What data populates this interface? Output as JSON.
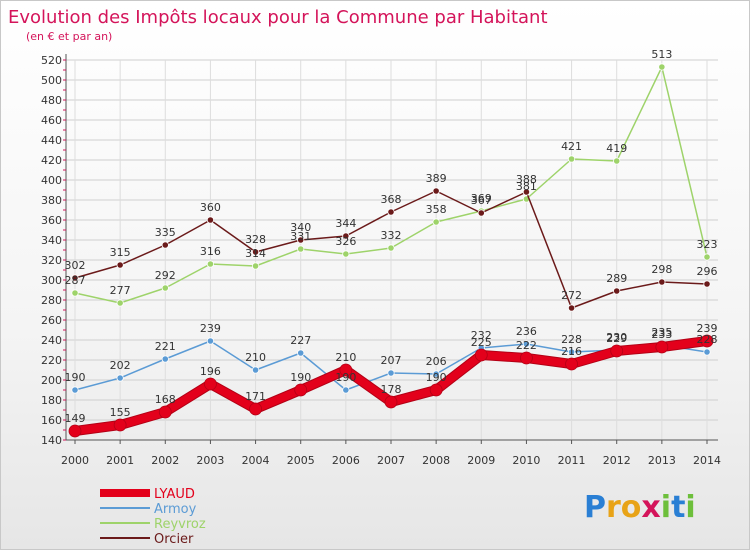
{
  "title": "Evolution des Impôts locaux pour la Commune par Habitant",
  "subtitle": "(en € et par an)",
  "logo": {
    "letters": [
      {
        "ch": "P",
        "color": "#2a7fd4"
      },
      {
        "ch": "r",
        "color": "#e8a317"
      },
      {
        "ch": "o",
        "color": "#e8a317"
      },
      {
        "ch": "x",
        "color": "#d4145a"
      },
      {
        "ch": "i",
        "color": "#6dbf3b"
      },
      {
        "ch": "t",
        "color": "#2a7fd4"
      },
      {
        "ch": "i",
        "color": "#6dbf3b"
      }
    ]
  },
  "chart_data": {
    "type": "line",
    "title": "Evolution des Impôts locaux pour la Commune par Habitant",
    "subtitle": "(en € et par an)",
    "x": [
      "2000",
      "2001",
      "2002",
      "2003",
      "2004",
      "2005",
      "2006",
      "2007",
      "2008",
      "2009",
      "2010",
      "2011",
      "2012",
      "2013",
      "2014"
    ],
    "ylim": [
      140,
      520
    ],
    "yticks": [
      140,
      160,
      180,
      200,
      220,
      240,
      260,
      280,
      300,
      320,
      340,
      360,
      380,
      400,
      420,
      440,
      460,
      480,
      500,
      520
    ],
    "grid": true,
    "legend_position": "bottom-left",
    "series": [
      {
        "name": "LYAUD",
        "color": "#e3001b",
        "width": 8,
        "values": [
          149,
          155,
          168,
          196,
          171,
          190,
          210,
          178,
          190,
          225,
          222,
          216,
          229,
          233,
          239
        ]
      },
      {
        "name": "Armoy",
        "color": "#5b9bd5",
        "width": 1.5,
        "values": [
          190,
          202,
          221,
          239,
          210,
          227,
          190,
          207,
          206,
          232,
          236,
          228,
          230,
          235,
          228
        ]
      },
      {
        "name": "Reyvroz",
        "color": "#9ed36a",
        "width": 1.5,
        "values": [
          287,
          277,
          292,
          316,
          314,
          331,
          326,
          332,
          358,
          369,
          381,
          421,
          419,
          513,
          323
        ]
      },
      {
        "name": "Orcier",
        "color": "#6b1a1a",
        "width": 1.5,
        "values": [
          302,
          315,
          335,
          360,
          328,
          340,
          344,
          368,
          389,
          367,
          388,
          272,
          289,
          298,
          296
        ]
      }
    ]
  }
}
